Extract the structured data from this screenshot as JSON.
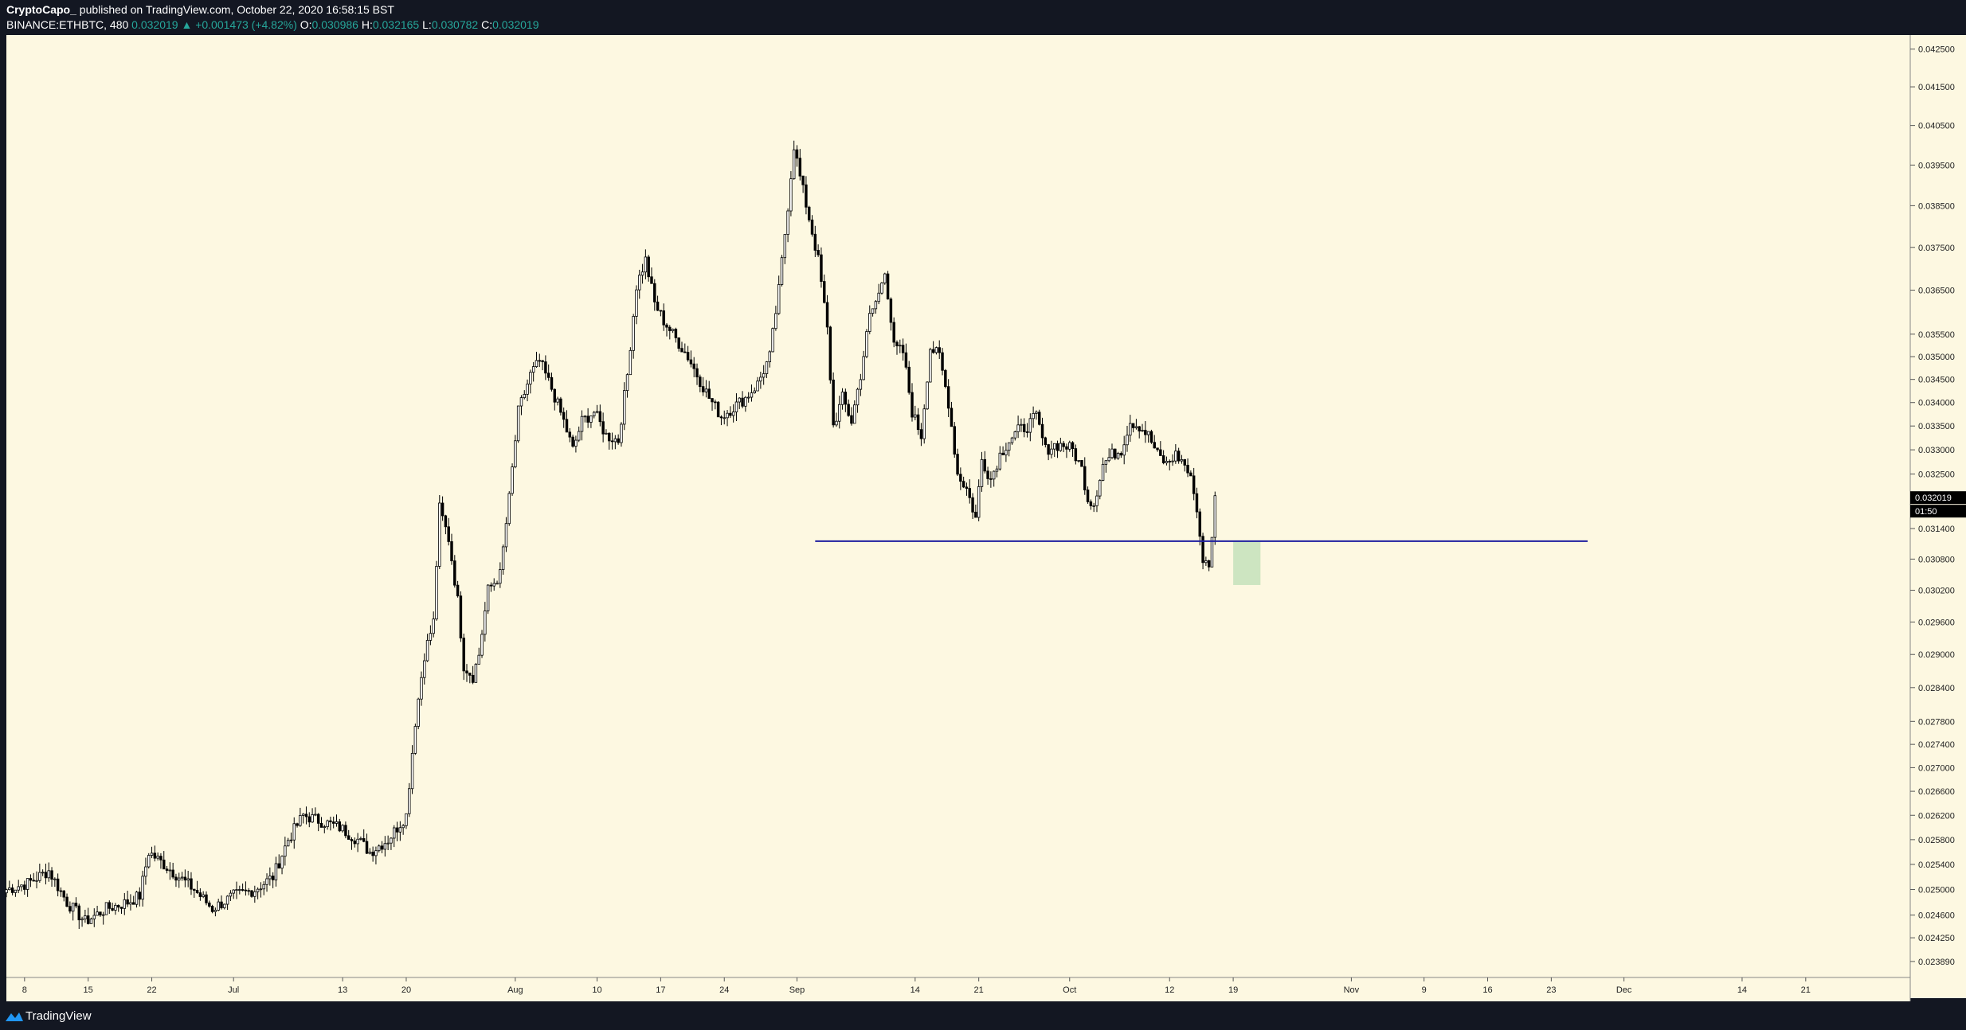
{
  "header": {
    "author": "CryptoCapo_",
    "published": "published on TradingView.com, October 22, 2020 16:58:15 BST",
    "symbol": "BINANCE:ETHBTC, 480",
    "last": "0.032019",
    "change": "+0.001473 (+4.82%)",
    "o_label": "O:",
    "o_value": "0.030986",
    "h_label": "H:",
    "h_value": "0.032165",
    "l_label": "L:",
    "l_value": "0.030782",
    "c_label": "C:",
    "c_value": "0.032019"
  },
  "footer": {
    "brand": "TradingView",
    "logo_icon": "tradingview-logo-icon"
  },
  "colors": {
    "background": "#fdf8e1",
    "frame": "#131722",
    "candle": "#000000",
    "support_line": "#1e1ea0",
    "highlight": "#a5d6a7",
    "price_label_bg": "#000000"
  },
  "chart_data": {
    "type": "candlestick",
    "symbol": "BINANCE:ETHBTC",
    "interval": "480",
    "y_scale": "log",
    "ylim": [
      0.02365,
      0.04288
    ],
    "y_ticks": [
      "0.042500",
      "0.041500",
      "0.040500",
      "0.039500",
      "0.038500",
      "0.037500",
      "0.036500",
      "0.035500",
      "0.035000",
      "0.034500",
      "0.034000",
      "0.033500",
      "0.033000",
      "0.032500",
      "0.031400",
      "0.030800",
      "0.030200",
      "0.029600",
      "0.029000",
      "0.028400",
      "0.027800",
      "0.027400",
      "0.027000",
      "0.026600",
      "0.026200",
      "0.025800",
      "0.025400",
      "0.025000",
      "0.024600",
      "0.024250",
      "0.023890"
    ],
    "x_ticks": [
      "8",
      "15",
      "22",
      "Jul",
      "13",
      "20",
      "Aug",
      "10",
      "17",
      "24",
      "Sep",
      "14",
      "21",
      "Oct",
      "12",
      "19",
      "Nov",
      "9",
      "16",
      "23",
      "Dec",
      "14",
      "21"
    ],
    "current_price_label": "0.032019",
    "countdown_label": "01:50",
    "close_series": {
      "start": "2020-06-06",
      "step": "8h",
      "note_values": [
        [
          0,
          0.025
        ],
        [
          7,
          0.0251
        ],
        [
          14,
          0.0253
        ],
        [
          20,
          0.0248
        ],
        [
          26,
          0.0245
        ],
        [
          33,
          0.0247
        ],
        [
          40,
          0.0248
        ],
        [
          44,
          0.0249
        ],
        [
          47,
          0.0256
        ],
        [
          52,
          0.0254
        ],
        [
          57,
          0.0252
        ],
        [
          62,
          0.025
        ],
        [
          68,
          0.0247
        ],
        [
          75,
          0.0249
        ],
        [
          82,
          0.025
        ],
        [
          88,
          0.0252
        ],
        [
          93,
          0.0258
        ],
        [
          98,
          0.0262
        ],
        [
          104,
          0.0261
        ],
        [
          110,
          0.026
        ],
        [
          116,
          0.0258
        ],
        [
          120,
          0.0256
        ],
        [
          126,
          0.0258
        ],
        [
          132,
          0.0262
        ],
        [
          135,
          0.0278
        ],
        [
          138,
          0.029
        ],
        [
          141,
          0.0296
        ],
        [
          143,
          0.0318
        ],
        [
          146,
          0.0312
        ],
        [
          149,
          0.03
        ],
        [
          151,
          0.0288
        ],
        [
          154,
          0.0286
        ],
        [
          156,
          0.029
        ],
        [
          159,
          0.0302
        ],
        [
          163,
          0.0305
        ],
        [
          166,
          0.032
        ],
        [
          169,
          0.0338
        ],
        [
          173,
          0.0346
        ],
        [
          176,
          0.0349
        ],
        [
          180,
          0.0343
        ],
        [
          184,
          0.0336
        ],
        [
          187,
          0.033
        ],
        [
          190,
          0.0336
        ],
        [
          194,
          0.0338
        ],
        [
          198,
          0.0333
        ],
        [
          202,
          0.0332
        ],
        [
          205,
          0.0346
        ],
        [
          208,
          0.0366
        ],
        [
          211,
          0.0372
        ],
        [
          214,
          0.0362
        ],
        [
          217,
          0.0358
        ],
        [
          221,
          0.0354
        ],
        [
          225,
          0.035
        ],
        [
          228,
          0.0346
        ],
        [
          232,
          0.0341
        ],
        [
          236,
          0.0337
        ],
        [
          240,
          0.0339
        ],
        [
          244,
          0.0341
        ],
        [
          248,
          0.0344
        ],
        [
          252,
          0.035
        ],
        [
          255,
          0.0365
        ],
        [
          258,
          0.0385
        ],
        [
          260,
          0.04
        ],
        [
          262,
          0.0392
        ],
        [
          265,
          0.0382
        ],
        [
          268,
          0.0372
        ],
        [
          271,
          0.0356
        ],
        [
          273,
          0.0335
        ],
        [
          276,
          0.0341
        ],
        [
          279,
          0.0336
        ],
        [
          282,
          0.0346
        ],
        [
          285,
          0.0359
        ],
        [
          288,
          0.0364
        ],
        [
          290,
          0.037
        ],
        [
          293,
          0.0352
        ],
        [
          296,
          0.0351
        ],
        [
          299,
          0.0338
        ],
        [
          302,
          0.0333
        ],
        [
          305,
          0.0352
        ],
        [
          308,
          0.035
        ],
        [
          311,
          0.034
        ],
        [
          314,
          0.0325
        ],
        [
          317,
          0.0322
        ],
        [
          320,
          0.0316
        ],
        [
          322,
          0.0328
        ],
        [
          325,
          0.0324
        ],
        [
          328,
          0.0329
        ],
        [
          331,
          0.0332
        ],
        [
          334,
          0.0334
        ],
        [
          337,
          0.0335
        ],
        [
          340,
          0.0337
        ],
        [
          343,
          0.033
        ],
        [
          346,
          0.0331
        ],
        [
          349,
          0.0331
        ],
        [
          352,
          0.033
        ],
        [
          355,
          0.0326
        ],
        [
          357,
          0.032
        ],
        [
          359,
          0.0319
        ],
        [
          362,
          0.0327
        ],
        [
          365,
          0.0329
        ],
        [
          368,
          0.033
        ],
        [
          371,
          0.0336
        ],
        [
          374,
          0.0335
        ],
        [
          377,
          0.0333
        ],
        [
          380,
          0.0329
        ],
        [
          383,
          0.0327
        ],
        [
          386,
          0.0329
        ],
        [
          389,
          0.0327
        ],
        [
          392,
          0.0322
        ],
        [
          395,
          0.0308
        ],
        [
          397,
          0.0306
        ],
        [
          399,
          0.032
        ]
      ]
    },
    "support_line": {
      "y": 0.03115,
      "from": "2020-09-03",
      "to": "2020-11-27"
    },
    "highlight_box": {
      "y_top": 0.03115,
      "y_bottom": 0.0303,
      "from": "2020-10-19",
      "to": "2020-10-22"
    }
  }
}
